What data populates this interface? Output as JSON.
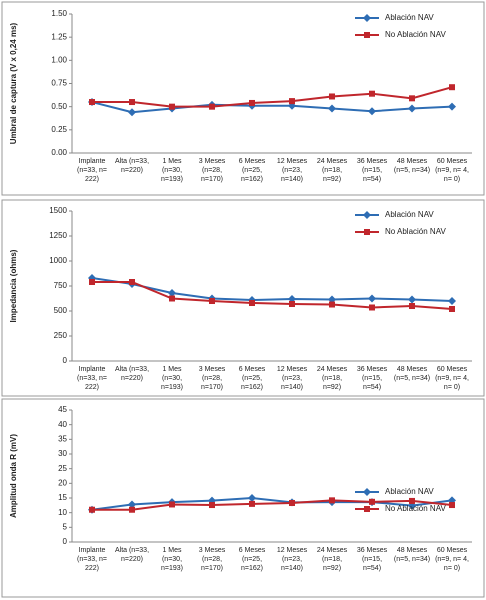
{
  "chart_data": [
    {
      "type": "line",
      "y_label": "Umbral de captura (V x 0,24 ms)",
      "categories": [
        "Implante (n=33, n= 222)",
        "Alta (n=33, n=220)",
        "1 Mes (n=30, n=193)",
        "3 Meses (n=28, n=170)",
        "6 Meses (n=25, n=162)",
        "12 Meses (n=23, n=140)",
        "24 Meses (n=18, n=92)",
        "36 Meses (n=15, n=54)",
        "48 Meses (n=5, n=34)",
        "60 Meses (n=9, n= 4, n= 0)"
      ],
      "series": [
        {
          "name": "Ablación NAV",
          "color": "#2e6db4",
          "marker": "diamond",
          "values": [
            0.55,
            0.44,
            0.48,
            0.52,
            0.51,
            0.51,
            0.48,
            0.45,
            0.48,
            0.5
          ]
        },
        {
          "name": "No Ablación NAV",
          "color": "#c0262c",
          "marker": "square",
          "values": [
            0.55,
            0.55,
            0.5,
            0.5,
            0.54,
            0.56,
            0.61,
            0.64,
            0.59,
            0.71
          ]
        }
      ],
      "ylim": [
        0,
        1.5
      ],
      "yticks": [
        {
          "value": 0,
          "label": "0.00"
        },
        {
          "value": 0.25,
          "label": "0.25"
        },
        {
          "value": 0.5,
          "label": "0.50"
        },
        {
          "value": 0.75,
          "label": "0.75"
        },
        {
          "value": 1,
          "label": "1.00"
        },
        {
          "value": 1.25,
          "label": "1.25"
        },
        {
          "value": 1.5,
          "label": "1.50"
        }
      ],
      "grid": false,
      "legend": "upper right"
    },
    {
      "type": "line",
      "y_label": "Impedancia (ohms)",
      "categories": [
        "Implante (n=33, n= 222)",
        "Alta (n=33, n=220)",
        "1 Mes (n=30, n=193)",
        "3 Meses (n=28, n=170)",
        "6 Meses (n=25, n=162)",
        "12 Meses (n=23, n=140)",
        "24 Meses (n=18, n=92)",
        "36 Meses (n=15, n=54)",
        "48 Meses (n=5, n=34)",
        "60 Meses (n=9, n= 4, n= 0)"
      ],
      "series": [
        {
          "name": "Ablación NAV",
          "color": "#2e6db4",
          "marker": "diamond",
          "values": [
            830,
            770,
            680,
            625,
            610,
            620,
            615,
            625,
            615,
            600
          ]
        },
        {
          "name": "No Ablación NAV",
          "color": "#c0262c",
          "marker": "square",
          "values": [
            790,
            790,
            625,
            600,
            580,
            570,
            565,
            535,
            550,
            520
          ]
        }
      ],
      "ylim": [
        0,
        1500
      ],
      "yticks": [
        0,
        250,
        500,
        750,
        1000,
        1250,
        1500
      ],
      "grid": false,
      "legend": "upper right"
    },
    {
      "type": "line",
      "y_label": "Amplitud onda R (mV)",
      "categories": [
        "Implante (n=33, n= 222)",
        "Alta (n=33, n=220)",
        "1 Mes (n=30, n=193)",
        "3 Meses (n=28, n=170)",
        "6 Meses (n=25, n=162)",
        "12 Meses (n=23, n=140)",
        "24 Meses (n=18, n=92)",
        "36 Meses (n=15, n=54)",
        "48 Meses (n=5, n=34)",
        "60 Meses (n=9, n= 4, n= 0)"
      ],
      "series": [
        {
          "name": "Ablación NAV",
          "color": "#2e6db4",
          "marker": "diamond",
          "values": [
            11,
            12.8,
            13.6,
            14.1,
            15,
            13.5,
            13.6,
            13.6,
            12.4,
            14.2
          ]
        },
        {
          "name": "No Ablación NAV",
          "color": "#c0262c",
          "marker": "square",
          "values": [
            11,
            11,
            12.8,
            12.6,
            13,
            13.3,
            14.2,
            13.7,
            14,
            12.6
          ]
        }
      ],
      "ylim": [
        0,
        45
      ],
      "yticks": [
        0,
        5,
        10,
        15,
        20,
        25,
        30,
        35,
        40,
        45
      ],
      "grid": false,
      "legend": "lower right"
    }
  ]
}
